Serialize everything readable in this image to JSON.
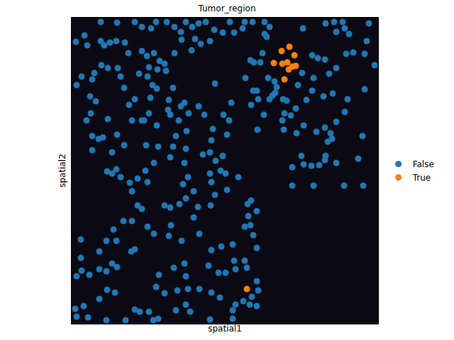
{
  "chart_data": {
    "type": "scatter",
    "title": "Tumor_region",
    "x_label": "spatial1",
    "y_label": "spatial2",
    "xlim": [
      101,
      533
    ],
    "ylim": [
      457,
      25
    ],
    "tick_labels": false,
    "legend": "right",
    "series": [
      {
        "name": "False",
        "color": "#1f77b4",
        "x": [
          142,
          165,
          190,
          200,
          213,
          220,
          235,
          246,
          255,
          262,
          271,
          280,
          290,
          302,
          324,
          345,
          356,
          373,
          373,
          427,
          459,
          471,
          474,
          486,
          492,
          483,
          520,
          517,
          107,
          119,
          123,
          142,
          147,
          155,
          164,
          176,
          181,
          200,
          207,
          217,
          225,
          232,
          222,
          210,
          234,
          246,
          270,
          275,
          256,
          283,
          296,
          314,
          330,
          342,
          380,
          376,
          370,
          367,
          353,
          378,
          388,
          390,
          440,
          448,
          458,
          464,
          474,
          488,
          498,
          514,
          528,
          514,
          474,
          468,
          486,
          490,
          469,
          456,
          440,
          442,
          426,
          420,
          384,
          387,
          357,
          362,
          380,
          399,
          432,
          417,
          401,
          410,
          398,
          400,
          418,
          428,
          446,
          458,
          466,
          462,
          459,
          458,
          450,
          425,
          428,
          439,
          412,
          412,
          442,
          474,
          511,
          505,
          485,
          512,
          108,
          115,
          130,
          133,
          143,
          152,
          166,
          170,
          175,
          196,
          208,
          215,
          212,
          221,
          244,
          255,
          260,
          252,
          240,
          237,
          263,
          248,
          262,
          244,
          223,
          206,
          186,
          152,
          130,
          130,
          145,
          139,
          158,
          164,
          158,
          151,
          170,
          183,
          186,
          194,
          208,
          205,
          217,
          240,
          260,
          265,
          286,
          300,
          320,
          298,
          296,
          304,
          314,
          296,
          298,
          303,
          318,
          320,
          336,
          258,
          262,
          273,
          279,
          240,
          232,
          200,
          194,
          186,
          174,
          160,
          150,
          164,
          140,
          114,
          114,
          108,
          115,
          126,
          140,
          150,
          158,
          165,
          185,
          190,
          208,
          217,
          241,
          238,
          256,
          281,
          273,
          253,
          297,
          298,
          312,
          328,
          345,
          350,
          362,
          354,
          349,
          353,
          357,
          362,
          345,
          348,
          332,
          318,
          330,
          308,
          294,
          260,
          262,
          245,
          224,
          232,
          220,
          250,
          265,
          281,
          298,
          310,
          332,
          352,
          355,
          362,
          343,
          328,
          328,
          362,
          364,
          190,
          197,
          210,
          223,
          248,
          262,
          268,
          296,
          216,
          151,
          162,
          118,
          106,
          140,
          108,
          150,
          177,
          124,
          315,
          323,
          326,
          303,
          288,
          280,
          266,
          238,
          210,
          203,
          190,
          182,
          135,
          127,
          122,
          128,
          165,
          175,
          200,
          221,
          311,
          358,
          346,
          364,
          354,
          363,
          372,
          404
        ],
        "y": [
          31,
          32,
          31,
          38,
          40,
          31,
          31,
          38,
          45,
          31,
          38,
          33,
          31,
          42,
          31,
          31,
          31,
          48,
          31,
          40,
          33,
          31,
          45,
          40,
          48,
          31,
          33,
          58,
          59,
          50,
          64,
          58,
          64,
          60,
          58,
          60,
          75,
          72,
          79,
          75,
          86,
          90,
          98,
          95,
          100,
          75,
          71,
          55,
          56,
          62,
          58,
          46,
          46,
          40,
          38,
          52,
          75,
          88,
          85,
          110,
          131,
          123,
          78,
          82,
          84,
          104,
          96,
          76,
          74,
          76,
          92,
          126,
          172,
          196,
          158,
          140,
          132,
          136,
          128,
          110,
          103,
          120,
          135,
          115,
          128,
          128,
          140,
          140,
          141,
          153,
          160,
          163,
          170,
          183,
          188,
          177,
          186,
          180,
          188,
          200,
          220,
          226,
          233,
          220,
          232,
          234,
          236,
          262,
          262,
          230,
          192,
          224,
          262,
          262,
          120,
          108,
          112,
          103,
          92,
          96,
          96,
          108,
          124,
          104,
          108,
          120,
          138,
          125,
          124,
          150,
          145,
          170,
          162,
          155,
          185,
          192,
          210,
          207,
          207,
          205,
          170,
          168,
          192,
          212,
          194,
          196,
          215,
          239,
          245,
          242,
          250,
          258,
          270,
          252,
          257,
          241,
          230,
          222,
          230,
          250,
          218,
          182,
          190,
          198,
          215,
          227,
          220,
          245,
          257,
          275,
          245,
          268,
          250,
          260,
          280,
          270,
          292,
          293,
          290,
          295,
          290,
          312,
          312,
          324,
          340,
          340,
          355,
          364,
          338,
          390,
          382,
          388,
          380,
          383,
          372,
          377,
          355,
          352,
          320,
          330,
          318,
          333,
          340,
          330,
          307,
          288,
          290,
          353,
          348,
          345,
          320,
          305,
          298,
          283,
          288,
          318,
          332,
          350,
          368,
          378,
          380,
          385,
          368,
          385,
          375,
          372,
          390,
          378,
          388,
          414,
          405,
          410,
          408,
          408,
          413,
          420,
          430,
          430,
          419,
          397,
          425,
          438,
          450,
          432,
          410,
          437,
          440,
          440,
          450,
          438,
          430,
          440,
          451,
          452,
          409,
          413,
          432,
          436,
          422,
          447,
          452,
          452,
          448,
          162,
          170,
          145,
          118,
          162,
          150,
          160,
          141,
          160,
          170,
          140,
          148,
          143,
          136,
          170,
          160,
          190,
          205,
          170,
          177,
          241,
          88,
          110,
          140,
          148,
          183,
          162,
          142
        ]
      },
      {
        "name": "True",
        "color": "#ff7f0e",
        "x": [
          397,
          408,
          415,
          386,
          398,
          405,
          412,
          417,
          407,
          401,
          348
        ],
        "y": [
          72,
          66,
          78,
          89,
          90,
          88,
          94,
          93,
          98,
          112,
          408
        ]
      }
    ]
  }
}
